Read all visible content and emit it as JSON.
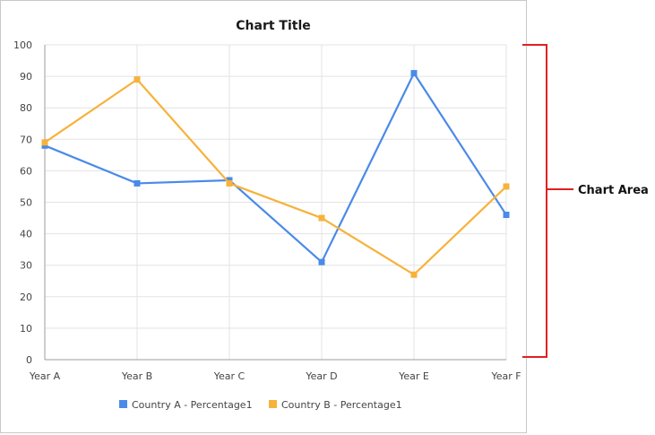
{
  "chart_data": {
    "type": "line",
    "title": "Chart Title",
    "categories": [
      "Year A",
      "Year B",
      "Year C",
      "Year D",
      "Year E",
      "Year F"
    ],
    "ylim": [
      0,
      100
    ],
    "yticks": [
      0,
      10,
      20,
      30,
      40,
      50,
      60,
      70,
      80,
      90,
      100
    ],
    "grid": true,
    "legend_position": "bottom",
    "series": [
      {
        "name": "Country A - Percentage1",
        "color": "#4a8ae8",
        "values": [
          68,
          56,
          57,
          31,
          91,
          46
        ]
      },
      {
        "name": "Country B - Percentage1",
        "color": "#f7b23b",
        "values": [
          69,
          89,
          56,
          45,
          27,
          55
        ]
      }
    ]
  },
  "annotation": {
    "label": "Chart Area",
    "color": "#e02020"
  }
}
